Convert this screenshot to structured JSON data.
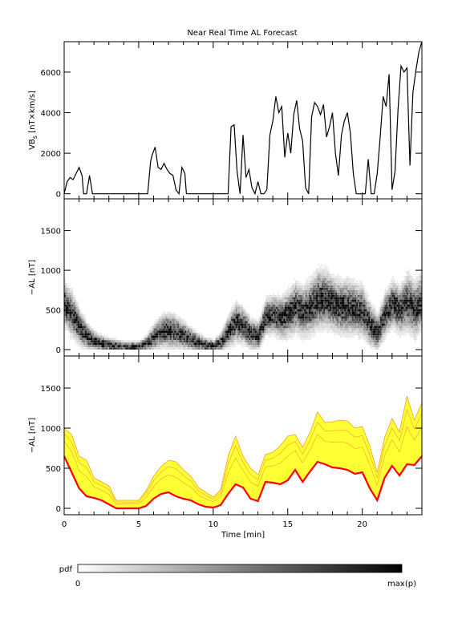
{
  "title": "Near Real Time AL Forecast",
  "xlabel": "Time [min]",
  "x_ticks": [
    "0",
    "5",
    "10",
    "15",
    "20"
  ],
  "colorbar": {
    "label": "pdf",
    "min_label": "0",
    "max_label": "max(p)"
  },
  "colors": {
    "background": "#ffffff",
    "axis": "#000000",
    "band": "#ffff33",
    "band_edge": "#f0a030",
    "al_line": "#ff0000"
  },
  "chart_data": [
    {
      "type": "line",
      "ylabel": "VBs [nT×km/s]",
      "ylabel_main": "VB",
      "ylabel_sub": "s",
      "ylabel_units": " [nT×km/s]",
      "xlim": [
        0,
        24
      ],
      "ylim": [
        -250,
        7500
      ],
      "y_ticks": [
        "0",
        "2000",
        "4000",
        "6000"
      ],
      "x": [
        0,
        0.2,
        0.4,
        0.6,
        0.8,
        1.0,
        1.2,
        1.3,
        1.5,
        1.7,
        1.9,
        2.0,
        2.2,
        3.0,
        4.0,
        5.0,
        5.6,
        5.8,
        5.9,
        6.1,
        6.3,
        6.5,
        6.7,
        6.9,
        7.1,
        7.3,
        7.5,
        7.7,
        7.9,
        8.1,
        8.2,
        8.5,
        9.0,
        10.0,
        10.8,
        11.0,
        11.2,
        11.4,
        11.6,
        11.8,
        12.0,
        12.2,
        12.4,
        12.6,
        12.8,
        13.0,
        13.2,
        13.4,
        13.6,
        13.8,
        14.0,
        14.2,
        14.4,
        14.6,
        14.8,
        15.0,
        15.2,
        15.4,
        15.6,
        15.8,
        16.0,
        16.2,
        16.4,
        16.6,
        16.8,
        17.0,
        17.2,
        17.4,
        17.6,
        17.8,
        18.0,
        18.2,
        18.4,
        18.6,
        18.8,
        19.0,
        19.2,
        19.4,
        19.6,
        19.8,
        20.0,
        20.2,
        20.4,
        20.6,
        20.8,
        21.0,
        21.2,
        21.4,
        21.6,
        21.8,
        22.0,
        22.2,
        22.4,
        22.6,
        22.8,
        23.0,
        23.2,
        23.4,
        23.6,
        23.8,
        24.0
      ],
      "y": [
        0,
        600,
        800,
        700,
        1000,
        1300,
        900,
        0,
        0,
        900,
        0,
        0,
        0,
        0,
        0,
        0,
        0,
        1600,
        1900,
        2300,
        1300,
        1200,
        1500,
        1200,
        1000,
        900,
        200,
        0,
        1300,
        1000,
        0,
        0,
        0,
        0,
        0,
        0,
        3300,
        3400,
        1100,
        0,
        2900,
        800,
        1200,
        300,
        0,
        600,
        0,
        0,
        200,
        2900,
        3600,
        4800,
        4000,
        4300,
        1800,
        3000,
        2000,
        3900,
        4600,
        3200,
        2600,
        300,
        0,
        3800,
        4500,
        4300,
        3900,
        4400,
        2800,
        3300,
        4000,
        2000,
        900,
        2900,
        3600,
        4000,
        3000,
        1000,
        0,
        0,
        0,
        0,
        1700,
        0,
        0,
        1000,
        2800,
        4800,
        4300,
        5900,
        200,
        1100,
        4200,
        6300,
        6000,
        6200,
        1400,
        5000,
        6100,
        7000,
        7500
      ]
    },
    {
      "type": "heatmap",
      "ylabel": "−AL [nT]",
      "xlim": [
        0,
        24
      ],
      "ylim": [
        -80,
        1900
      ],
      "y_ticks": [
        "0",
        "500",
        "1000",
        "1500"
      ],
      "time_min": [
        0,
        0.5,
        1,
        1.5,
        2,
        2.5,
        3,
        3.5,
        4,
        4.5,
        5,
        5.5,
        6,
        6.5,
        7,
        7.5,
        8,
        8.5,
        9,
        9.5,
        10,
        10.5,
        11,
        11.5,
        12,
        12.5,
        13,
        13.5,
        14,
        14.5,
        15,
        15.5,
        16,
        16.5,
        17,
        17.5,
        18,
        18.5,
        19,
        19.5,
        20,
        20.5,
        21,
        21.5,
        22,
        22.5,
        23,
        23.5,
        24
      ],
      "center_nT": [
        550,
        430,
        260,
        150,
        90,
        60,
        40,
        30,
        25,
        20,
        20,
        60,
        140,
        210,
        230,
        200,
        160,
        110,
        70,
        40,
        30,
        80,
        220,
        330,
        280,
        180,
        160,
        400,
        430,
        380,
        430,
        520,
        460,
        520,
        620,
        620,
        560,
        520,
        520,
        500,
        470,
        300,
        200,
        430,
        560,
        480,
        590,
        480,
        620
      ],
      "spread_nT": [
        250,
        250,
        200,
        150,
        110,
        90,
        80,
        70,
        60,
        60,
        60,
        90,
        150,
        180,
        200,
        180,
        160,
        130,
        100,
        80,
        70,
        110,
        180,
        220,
        200,
        170,
        160,
        200,
        220,
        230,
        260,
        280,
        280,
        300,
        330,
        320,
        300,
        300,
        300,
        280,
        280,
        240,
        200,
        240,
        260,
        260,
        320,
        300,
        320
      ]
    },
    {
      "type": "area",
      "ylabel": "−AL [nT]",
      "xlim": [
        0,
        24
      ],
      "ylim": [
        -80,
        1900
      ],
      "y_ticks": [
        "0",
        "500",
        "1000",
        "1500"
      ],
      "x": [
        0,
        0.5,
        1,
        1.5,
        2,
        2.5,
        3,
        3.5,
        4,
        4.5,
        5,
        5.5,
        6,
        6.5,
        7,
        7.5,
        8,
        8.5,
        9,
        9.5,
        10,
        10.5,
        11,
        11.5,
        12,
        12.5,
        13,
        13.5,
        14,
        14.5,
        15,
        15.5,
        16,
        16.5,
        17,
        17.5,
        18,
        18.5,
        19,
        19.5,
        20,
        20.5,
        21,
        21.5,
        22,
        22.5,
        23,
        23.5,
        24
      ],
      "al_red": [
        650,
        450,
        250,
        150,
        130,
        100,
        50,
        0,
        0,
        0,
        0,
        30,
        120,
        180,
        200,
        150,
        120,
        100,
        50,
        20,
        10,
        40,
        180,
        300,
        260,
        120,
        90,
        330,
        320,
        300,
        350,
        480,
        330,
        460,
        580,
        550,
        510,
        500,
        480,
        430,
        450,
        250,
        100,
        380,
        530,
        410,
        550,
        540,
        650
      ],
      "band_low": [
        650,
        450,
        250,
        150,
        130,
        100,
        50,
        0,
        0,
        0,
        0,
        30,
        120,
        180,
        200,
        150,
        120,
        100,
        50,
        20,
        10,
        40,
        180,
        300,
        260,
        120,
        90,
        330,
        320,
        300,
        350,
        480,
        330,
        460,
        580,
        550,
        510,
        500,
        480,
        430,
        450,
        250,
        100,
        380,
        530,
        410,
        550,
        540,
        650
      ],
      "band_high": [
        1000,
        920,
        650,
        600,
        380,
        330,
        280,
        100,
        100,
        100,
        100,
        220,
        400,
        520,
        600,
        580,
        480,
        400,
        260,
        200,
        140,
        230,
        650,
        900,
        650,
        500,
        420,
        670,
        700,
        780,
        900,
        920,
        760,
        950,
        1200,
        1070,
        1080,
        1100,
        1090,
        1000,
        1020,
        780,
        450,
        880,
        1120,
        950,
        1400,
        1100,
        1320
      ]
    }
  ]
}
